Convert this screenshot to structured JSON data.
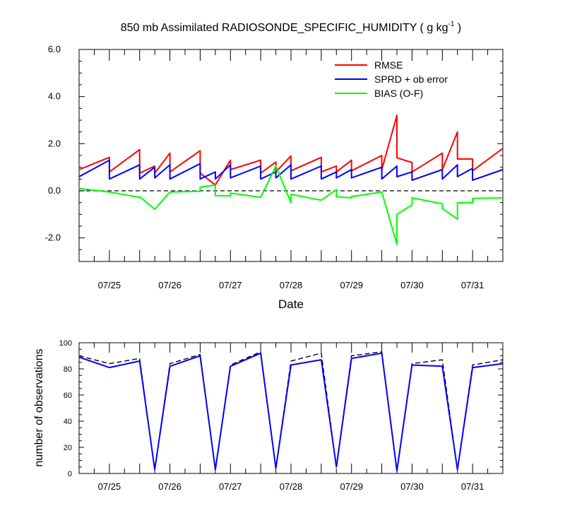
{
  "chart_data": [
    {
      "type": "line",
      "title": "850 mb Assimilated RADIOSONDE_SPECIFIC_HUMIDITY ( g kg",
      "title_sup": "-1",
      "title_end": " )",
      "xlabel": "Date",
      "ylabel": "",
      "ylim": [
        -3.0,
        6.0
      ],
      "xlim": [
        0,
        7
      ],
      "yticks": [
        {
          "value": -2.0,
          "label": "-2.0"
        },
        {
          "value": 0.0,
          "label": "0.0"
        },
        {
          "value": 2.0,
          "label": "2.0"
        },
        {
          "value": 4.0,
          "label": "4.0"
        },
        {
          "value": 6.0,
          "label": "6.0"
        }
      ],
      "xticks": [
        {
          "value": 0.5,
          "label": "07/25"
        },
        {
          "value": 1.5,
          "label": "07/26"
        },
        {
          "value": 2.5,
          "label": "07/27"
        },
        {
          "value": 3.5,
          "label": "07/28"
        },
        {
          "value": 4.5,
          "label": "07/29"
        },
        {
          "value": 5.5,
          "label": "07/30"
        },
        {
          "value": 6.5,
          "label": "07/31"
        }
      ],
      "reference_line": {
        "y": 0.0,
        "style": "dashed",
        "color": "#000000"
      },
      "legend": {
        "placement": "top-right"
      },
      "series": [
        {
          "name": "RMSE",
          "color": "#ff0000",
          "points": [
            [
              0,
              0.9
            ],
            [
              0.5,
              1.42
            ],
            [
              0.5,
              0.8
            ],
            [
              1.0,
              1.75
            ],
            [
              1.0,
              0.75
            ],
            [
              1.25,
              1.05
            ],
            [
              1.25,
              0.75
            ],
            [
              1.5,
              1.6
            ],
            [
              1.5,
              0.8
            ],
            [
              2.0,
              1.7
            ],
            [
              2.0,
              0.75
            ],
            [
              2.25,
              0.25
            ],
            [
              2.5,
              1.3
            ],
            [
              2.5,
              0.9
            ],
            [
              3.0,
              1.3
            ],
            [
              3.0,
              0.75
            ],
            [
              3.25,
              1.22
            ],
            [
              3.25,
              0.8
            ],
            [
              3.5,
              1.48
            ],
            [
              3.5,
              0.85
            ],
            [
              4.0,
              1.42
            ],
            [
              4.0,
              0.8
            ],
            [
              4.25,
              1.05
            ],
            [
              4.25,
              0.8
            ],
            [
              4.5,
              1.3
            ],
            [
              4.5,
              0.85
            ],
            [
              5.0,
              1.5
            ],
            [
              5.0,
              0.9
            ],
            [
              5.25,
              3.2
            ],
            [
              5.25,
              1.4
            ],
            [
              5.5,
              1.2
            ],
            [
              5.5,
              0.8
            ],
            [
              6.0,
              1.6
            ],
            [
              6.0,
              0.9
            ],
            [
              6.25,
              2.5
            ],
            [
              6.25,
              1.35
            ],
            [
              6.5,
              1.35
            ],
            [
              6.5,
              0.85
            ],
            [
              7.0,
              1.8
            ]
          ]
        },
        {
          "name": "SPRD + ob error",
          "color": "#0000ff",
          "points": [
            [
              0,
              0.6
            ],
            [
              0.5,
              1.3
            ],
            [
              0.5,
              0.5
            ],
            [
              1.0,
              1.1
            ],
            [
              1.0,
              0.5
            ],
            [
              1.25,
              1.0
            ],
            [
              1.25,
              0.55
            ],
            [
              1.5,
              1.1
            ],
            [
              1.5,
              0.5
            ],
            [
              2.0,
              1.15
            ],
            [
              2.0,
              0.5
            ],
            [
              2.25,
              0.8
            ],
            [
              2.25,
              0.5
            ],
            [
              2.5,
              1.1
            ],
            [
              2.5,
              0.55
            ],
            [
              3.0,
              1.05
            ],
            [
              3.0,
              0.5
            ],
            [
              3.25,
              0.8
            ],
            [
              3.25,
              0.55
            ],
            [
              3.5,
              1.1
            ],
            [
              3.5,
              0.5
            ],
            [
              4.0,
              1.05
            ],
            [
              4.0,
              0.5
            ],
            [
              4.25,
              0.8
            ],
            [
              4.25,
              0.55
            ],
            [
              4.5,
              0.9
            ],
            [
              4.5,
              0.55
            ],
            [
              5.0,
              1.0
            ],
            [
              5.0,
              0.5
            ],
            [
              5.25,
              1.05
            ],
            [
              5.25,
              0.6
            ],
            [
              5.5,
              0.8
            ],
            [
              5.5,
              0.45
            ],
            [
              6.0,
              0.9
            ],
            [
              6.0,
              0.5
            ],
            [
              6.25,
              1.1
            ],
            [
              6.25,
              0.6
            ],
            [
              6.5,
              0.95
            ],
            [
              6.5,
              0.45
            ],
            [
              7.0,
              0.9
            ]
          ]
        },
        {
          "name": "BIAS (O-F)",
          "color": "#00ff00",
          "points": [
            [
              0,
              0.1
            ],
            [
              0.5,
              -0.05
            ],
            [
              1.0,
              -0.28
            ],
            [
              1.0,
              -0.25
            ],
            [
              1.25,
              -0.78
            ],
            [
              1.5,
              -0.05
            ],
            [
              2.0,
              -0.02
            ],
            [
              2.0,
              0.15
            ],
            [
              2.25,
              0.25
            ],
            [
              2.25,
              -0.2
            ],
            [
              2.5,
              -0.22
            ],
            [
              2.5,
              -0.1
            ],
            [
              3.0,
              -0.28
            ],
            [
              3.25,
              1.05
            ],
            [
              3.5,
              -0.5
            ],
            [
              3.5,
              -0.15
            ],
            [
              4.0,
              -0.4
            ],
            [
              4.25,
              0.05
            ],
            [
              4.25,
              -0.25
            ],
            [
              4.5,
              -0.3
            ],
            [
              4.5,
              -0.25
            ],
            [
              5.0,
              -0.05
            ],
            [
              5.25,
              -2.28
            ],
            [
              5.25,
              -1.0
            ],
            [
              5.5,
              -0.6
            ],
            [
              5.5,
              -0.3
            ],
            [
              6.0,
              -0.55
            ],
            [
              6.0,
              -0.75
            ],
            [
              6.25,
              -1.2
            ],
            [
              6.25,
              -0.5
            ],
            [
              6.5,
              -0.5
            ],
            [
              6.5,
              -0.32
            ],
            [
              7.0,
              -0.3
            ]
          ]
        }
      ]
    },
    {
      "type": "line",
      "title": "",
      "xlabel": "",
      "ylabel": "number of observations",
      "ylim": [
        0,
        100
      ],
      "xlim": [
        0,
        7
      ],
      "yticks": [
        {
          "value": 0,
          "label": "0"
        },
        {
          "value": 20,
          "label": "20"
        },
        {
          "value": 40,
          "label": "40"
        },
        {
          "value": 60,
          "label": "60"
        },
        {
          "value": 80,
          "label": "80"
        },
        {
          "value": 100,
          "label": "100"
        }
      ],
      "xticks": [
        {
          "value": 0.5,
          "label": "07/25"
        },
        {
          "value": 1.5,
          "label": "07/26"
        },
        {
          "value": 2.5,
          "label": "07/27"
        },
        {
          "value": 3.5,
          "label": "07/28"
        },
        {
          "value": 4.5,
          "label": "07/29"
        },
        {
          "value": 5.5,
          "label": "07/30"
        },
        {
          "value": 6.5,
          "label": "07/31"
        }
      ],
      "series": [
        {
          "color": "#000000",
          "style": "dashed",
          "points": [
            [
              0,
              90
            ],
            [
              0.5,
              84
            ],
            [
              1.0,
              88
            ],
            [
              1.25,
              3
            ],
            [
              1.5,
              84
            ],
            [
              2.0,
              91
            ],
            [
              2.25,
              3
            ],
            [
              2.5,
              83
            ],
            [
              3.0,
              93
            ],
            [
              3.25,
              4
            ],
            [
              3.5,
              86
            ],
            [
              4.0,
              92
            ],
            [
              4.25,
              5
            ],
            [
              4.5,
              90
            ],
            [
              5.0,
              93
            ],
            [
              5.25,
              2
            ],
            [
              5.5,
              84
            ],
            [
              6.0,
              87
            ],
            [
              6.25,
              3
            ],
            [
              6.5,
              83
            ],
            [
              7.0,
              87
            ]
          ]
        },
        {
          "color": "#0000ff",
          "style": "solid",
          "points": [
            [
              0,
              89
            ],
            [
              0.5,
              81
            ],
            [
              1.0,
              86
            ],
            [
              1.25,
              3
            ],
            [
              1.5,
              82
            ],
            [
              2.0,
              90
            ],
            [
              2.25,
              3
            ],
            [
              2.5,
              82
            ],
            [
              3.0,
              92
            ],
            [
              3.25,
              4
            ],
            [
              3.5,
              83
            ],
            [
              4.0,
              87
            ],
            [
              4.25,
              5
            ],
            [
              4.5,
              88
            ],
            [
              5.0,
              92
            ],
            [
              5.25,
              2
            ],
            [
              5.5,
              83
            ],
            [
              6.0,
              82
            ],
            [
              6.25,
              3
            ],
            [
              6.5,
              81
            ],
            [
              7.0,
              84
            ]
          ]
        }
      ]
    }
  ]
}
